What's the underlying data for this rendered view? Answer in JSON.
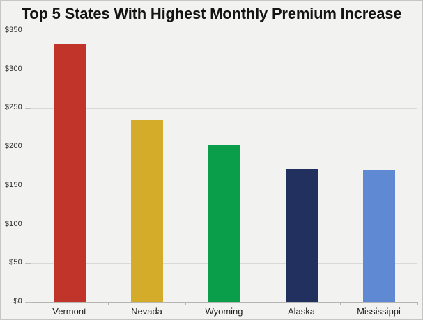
{
  "title": "Top 5 States With Highest Monthly Premium Increase",
  "colors": {
    "panel_background": "#f2f2f0",
    "panel_border": "#c6c6c4",
    "gridline": "#d9d9d6",
    "axis": "#b5b5b3",
    "title_text": "#141414",
    "tick_text": "#2e2e2e"
  },
  "chart_data": {
    "type": "bar",
    "title": "Top 5 States With Highest Monthly Premium Increase",
    "categories": [
      "Vermont",
      "Nevada",
      "Wyoming",
      "Alaska",
      "Mississippi"
    ],
    "values": [
      333,
      234,
      203,
      171,
      170
    ],
    "bar_colors": [
      "#c0342a",
      "#d4ac2a",
      "#0a9e4a",
      "#22305f",
      "#6089d4"
    ],
    "xlabel": "",
    "ylabel": "",
    "ylim": [
      0,
      350
    ],
    "ytick_step": 50,
    "ytick_labels": [
      "$0",
      "$50",
      "$100",
      "$150",
      "$200",
      "$250",
      "$300",
      "$350"
    ],
    "grid": true,
    "legend_position": "none"
  }
}
